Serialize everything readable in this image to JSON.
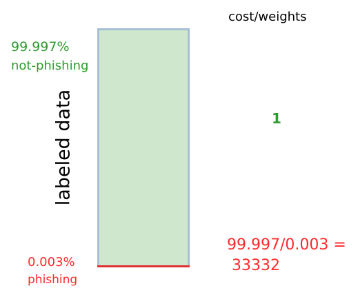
{
  "labels": {
    "majority_percent": "99.997%",
    "majority_name": "not-phishing",
    "minority_percent": "0.003%",
    "minority_name": "phishing",
    "axis_label": "labeled data",
    "cost_header": "cost/weights",
    "majority_weight": "1",
    "minority_weight_formula": "99.997/0.003 =",
    "minority_weight_value": "33332"
  },
  "chart_data": {
    "type": "bar",
    "stacked": true,
    "categories": [
      "not-phishing",
      "phishing"
    ],
    "values": [
      99.997,
      0.003
    ],
    "weights": [
      1,
      33332
    ],
    "ylabel": "labeled data"
  },
  "colors": {
    "majority_text": "#2e9b2e",
    "majority_fill": "#cfe8cd",
    "bar_border": "#a8bfd6",
    "minority_text": "#ff2a2a",
    "minority_line": "#e03030"
  }
}
